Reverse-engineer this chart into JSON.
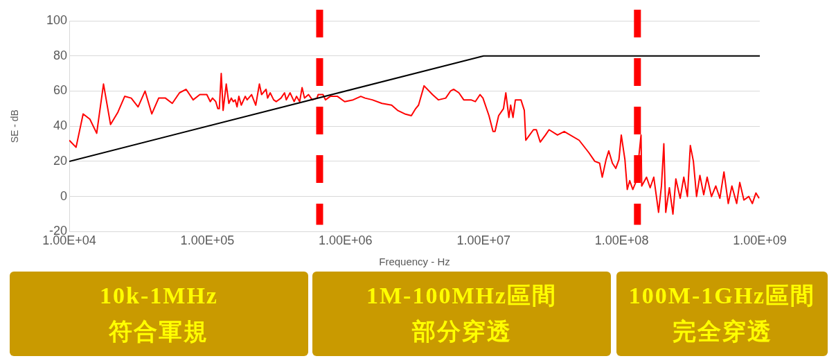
{
  "chart_data": {
    "type": "line",
    "xlabel": "Frequency - Hz",
    "ylabel": "SE - dB",
    "log": "x",
    "grid": "y",
    "legend": false,
    "marker": "none",
    "line_style": "solid",
    "xlim": [
      10000,
      1000000000
    ],
    "xticks": [
      {
        "value": 10000,
        "label": "1.00E+04"
      },
      {
        "value": 100000,
        "label": "1.00E+05"
      },
      {
        "value": 1000000,
        "label": "1.00E+06"
      },
      {
        "value": 10000000,
        "label": "1.00E+07"
      },
      {
        "value": 100000000,
        "label": "1.00E+08"
      },
      {
        "value": 1000000000,
        "label": "1.00E+09"
      }
    ],
    "ylim": [
      -20,
      100
    ],
    "yticks": [
      -20,
      0,
      20,
      40,
      60,
      80,
      100
    ],
    "series": [
      {
        "color": "#000000",
        "x": [
          10000,
          10000000,
          1000000000
        ],
        "values": [
          20,
          80,
          80
        ]
      },
      {
        "color": "#ff0000",
        "x": [
          10000,
          11200,
          12600,
          14100,
          15800,
          17700,
          19900,
          22500,
          25200,
          28100,
          31500,
          35400,
          39600,
          44400,
          49700,
          55700,
          62800,
          70200,
          78900,
          88200,
          99100,
          105000,
          109000,
          115000,
          119000,
          122000,
          126000,
          130000,
          137000,
          143000,
          149000,
          154000,
          159000,
          164000,
          169000,
          176000,
          188000,
          194000,
          209000,
          224000,
          238000,
          247000,
          266000,
          273000,
          285000,
          302000,
          315000,
          341000,
          362000,
          373000,
          397000,
          425000,
          442000,
          466000,
          485000,
          505000,
          540000,
          574000,
          622000,
          634000,
          688000,
          716000,
          776000,
          875000,
          987000,
          1135000,
          1291000,
          1387000,
          1564000,
          1836000,
          2157000,
          2384000,
          2690000,
          2998000,
          3222000,
          3381000,
          3707000,
          4265000,
          4712000,
          5317000,
          5758000,
          6070000,
          6627000,
          7183000,
          8106000,
          8710000,
          9428000,
          9895000,
          10940000,
          11700000,
          12100000,
          12850000,
          13930000,
          14490000,
          15250000,
          15700000,
          16330000,
          16990000,
          18650000,
          19720000,
          20210000,
          22970000,
          24100000,
          25700000,
          28060000,
          29800000,
          34270000,
          38370000,
          49200000,
          57770000,
          63860000,
          69180000,
          72300000,
          77070000,
          80560000,
          85640000,
          90570000,
          95500000,
          99300000,
          105500000,
          109700000,
          114300000,
          120300000,
          127800000,
          134000000,
          138000000,
          139600000,
          151300000,
          160700000,
          170700000,
          184900000,
          194000000,
          201900000,
          208400000,
          221400000,
          235000000,
          246600000,
          265200000,
          281600000,
          299100000,
          314000000,
          330500000,
          348300000,
          368300000,
          392500000,
          415600000,
          446900000,
          480200000,
          514000000,
          550000000,
          591000000,
          628000000,
          680000000,
          716000000,
          767000000,
          832000000,
          883000000,
          937000000,
          988000000
        ],
        "values": [
          32,
          28,
          47,
          44,
          36,
          64,
          41,
          48,
          57,
          56,
          51,
          60,
          47,
          56,
          56,
          53,
          59,
          61,
          55,
          58,
          58,
          54,
          56,
          54,
          50,
          50,
          70,
          49,
          64,
          53,
          56,
          54,
          55,
          51,
          57,
          52,
          57,
          55,
          58,
          52,
          64,
          58,
          61,
          56,
          59,
          55,
          54,
          56,
          59,
          55,
          59,
          54,
          57,
          54,
          62,
          56,
          58,
          55,
          56,
          58,
          58,
          55,
          57,
          57,
          54,
          55,
          57,
          56,
          55,
          53,
          52,
          49,
          47,
          46,
          50,
          52,
          63,
          58,
          55,
          56,
          60,
          61,
          59,
          55,
          55,
          54,
          58,
          56,
          46,
          37,
          37,
          46,
          50,
          59,
          45,
          52,
          45,
          55,
          55,
          49,
          32,
          38,
          38,
          31,
          35,
          38,
          35,
          37,
          32,
          25,
          20,
          19,
          11,
          21,
          26,
          19,
          16,
          21,
          35,
          21,
          4,
          9,
          4,
          9,
          25,
          35,
          6,
          11,
          5,
          11,
          -9,
          6,
          30,
          -9,
          5,
          -10,
          10,
          -1,
          11,
          0,
          29,
          20,
          0,
          12,
          1,
          11,
          0,
          6,
          -1,
          14,
          -4,
          6,
          -4,
          8,
          -2,
          0,
          -4,
          2,
          -1
        ]
      }
    ],
    "ref_lines": [
      {
        "axis": "x",
        "value": 650000,
        "color": "#ff0000",
        "line_style": "dashed"
      },
      {
        "axis": "x",
        "value": 130000000,
        "color": "#ff0000",
        "line_style": "dashed"
      }
    ],
    "annotations": [
      "10k-1MHz\n符合軍規",
      "1M-100MHz區間部分穿透",
      "100M-1GHz區間完全穿透"
    ]
  }
}
